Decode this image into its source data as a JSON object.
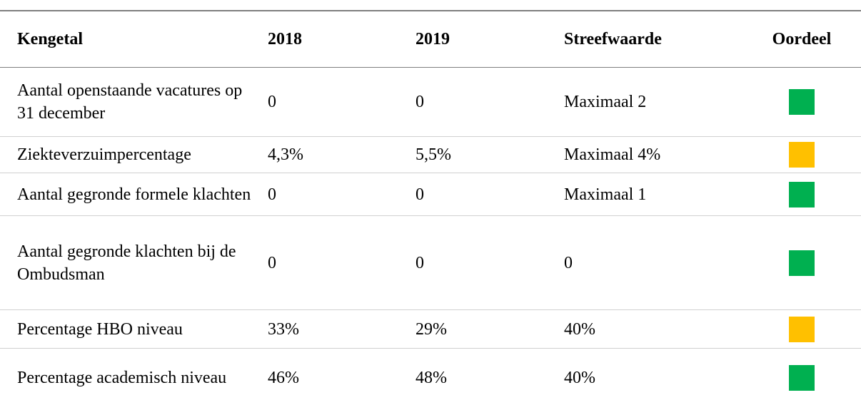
{
  "table": {
    "header": [
      "Kengetal",
      "2018",
      "2019",
      "Streefwaarde",
      "Oordeel"
    ],
    "rows": [
      {
        "cells": [
          "Aantal openstaande vacatures op 31 december",
          "0",
          "0",
          "Maximaal 2"
        ],
        "color": "#00b050"
      },
      {
        "cells": [
          "Ziekteverzuimpercentage",
          "4,3%",
          "5,5%",
          "Maximaal 4%"
        ],
        "color": "#ffc000"
      },
      {
        "cells": [
          "Aantal gegronde formele klachten",
          "0",
          "0",
          "Maximaal 1"
        ],
        "color": "#00b050"
      },
      {
        "cells": [
          "Aantal gegronde klachten bij de Ombudsman",
          "0",
          "0",
          "0"
        ],
        "color": "#00b050"
      },
      {
        "cells": [
          "Percentage HBO niveau",
          "33%",
          "29%",
          "40%"
        ],
        "color": "#ffc000"
      },
      {
        "cells": [
          "Percentage academisch niveau",
          "46%",
          "48%",
          "40%"
        ],
        "color": "#00b050"
      }
    ]
  }
}
